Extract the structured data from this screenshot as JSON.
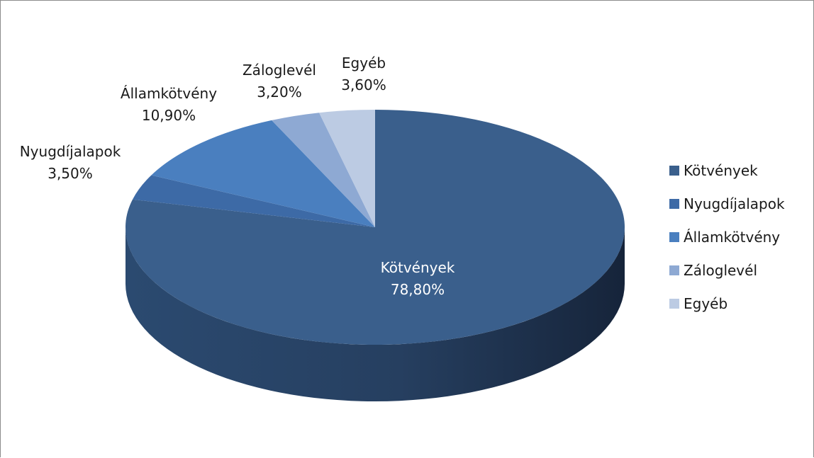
{
  "chart_data": {
    "type": "pie",
    "style": "3d-exploded-none",
    "categories": [
      "Kötvények",
      "Nyugdíjalapok",
      "Államkötvény",
      "Záloglevél",
      "Egyéb"
    ],
    "values": [
      78.8,
      3.5,
      10.9,
      3.2,
      3.6
    ],
    "value_labels": [
      "78,80%",
      "3,50%",
      "10,90%",
      "3,20%",
      "3,60%"
    ],
    "colors": [
      "#3a5f8c",
      "#3d6aa6",
      "#4a7fbf",
      "#8ea9d3",
      "#bccbe3"
    ],
    "side_colors": [
      "#2b4a70",
      "#2e5387",
      "#3a659c",
      "#6e88b0",
      "#98a8c2"
    ],
    "legend_position": "right",
    "title": ""
  }
}
